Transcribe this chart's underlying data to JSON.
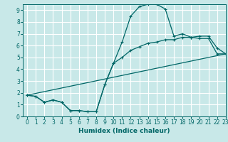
{
  "title": "",
  "xlabel": "Humidex (Indice chaleur)",
  "ylabel": "",
  "background_color": "#c8e8e8",
  "grid_color": "#ffffff",
  "line_color": "#006666",
  "xlim": [
    -0.5,
    23
  ],
  "ylim": [
    0,
    9.5
  ],
  "xticks": [
    0,
    1,
    2,
    3,
    4,
    5,
    6,
    7,
    8,
    9,
    10,
    11,
    12,
    13,
    14,
    15,
    16,
    17,
    18,
    19,
    20,
    21,
    22,
    23
  ],
  "yticks": [
    0,
    1,
    2,
    3,
    4,
    5,
    6,
    7,
    8,
    9
  ],
  "curve1_x": [
    0,
    1,
    2,
    3,
    4,
    5,
    6,
    7,
    8,
    9,
    10,
    11,
    12,
    13,
    14,
    15,
    16,
    17,
    18,
    19,
    20,
    21,
    22,
    23
  ],
  "curve1_y": [
    1.8,
    1.7,
    1.2,
    1.4,
    1.2,
    0.5,
    0.5,
    0.4,
    0.4,
    2.7,
    4.5,
    6.3,
    8.5,
    9.3,
    9.5,
    9.5,
    9.1,
    6.8,
    7.0,
    6.7,
    6.6,
    6.6,
    5.3,
    5.3
  ],
  "curve2_x": [
    0,
    23
  ],
  "curve2_y": [
    1.8,
    5.3
  ],
  "curve3_x": [
    0,
    1,
    2,
    3,
    4,
    5,
    6,
    7,
    8,
    9,
    10,
    11,
    12,
    13,
    14,
    15,
    16,
    17,
    18,
    19,
    20,
    21,
    22,
    23
  ],
  "curve3_y": [
    1.8,
    1.7,
    1.2,
    1.4,
    1.2,
    0.5,
    0.5,
    0.4,
    0.4,
    2.7,
    4.5,
    5.0,
    5.6,
    5.9,
    6.2,
    6.3,
    6.5,
    6.5,
    6.7,
    6.7,
    6.8,
    6.8,
    5.8,
    5.3
  ]
}
